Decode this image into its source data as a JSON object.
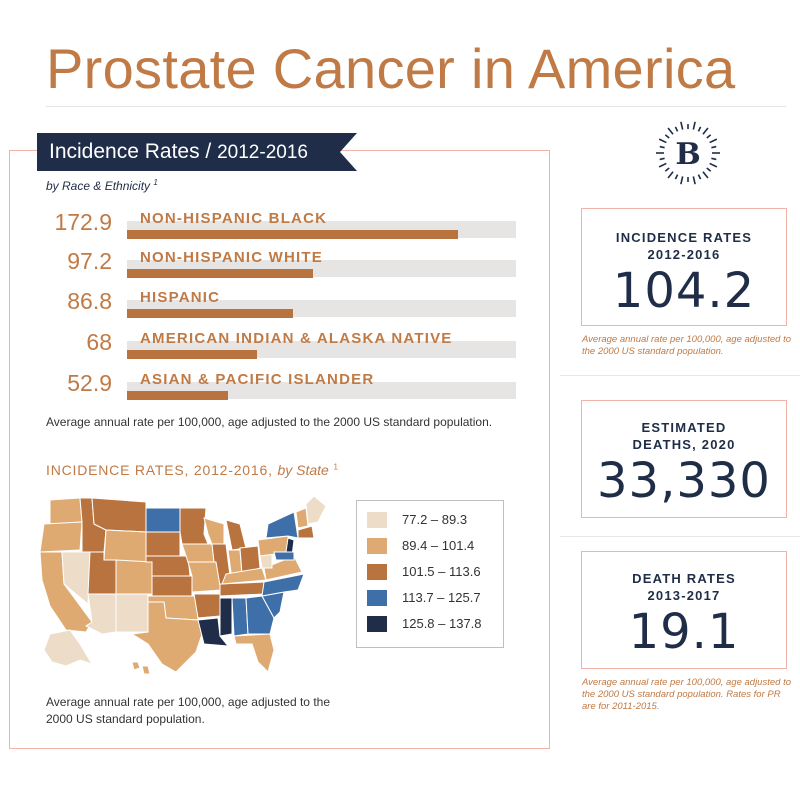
{
  "title": "Prostate Cancer in America",
  "colors": {
    "accent": "#c07a45",
    "navy": "#1f2d48",
    "bar_fill": "#b8733f",
    "bar_bg": "#e7e4e4",
    "border": "#f0b3a7"
  },
  "race_section": {
    "banner_main": "Incidence Rates",
    "banner_sep": " / ",
    "banner_years": "2012-2016",
    "subhead": "by Race & Ethnicity",
    "footnote_mark": "1",
    "note": "Average annual rate per 100,000, age adjusted to the 2000 US standard population."
  },
  "state_section": {
    "heading": "INCIDENCE RATES, 2012-2016,",
    "heading_italic": "by State",
    "footnote_mark": "1",
    "note_line1": "Average annual rate per 100,000, age adjusted to the",
    "note_line2": "2000 US standard population.",
    "map_icon": "us-states-choropleth"
  },
  "chart_data": [
    {
      "type": "bar",
      "orientation": "horizontal",
      "title": "Incidence Rates / 2012-2016",
      "subtitle": "by Race & Ethnicity",
      "categories": [
        "NON-HISPANIC BLACK",
        "NON-HISPANIC WHITE",
        "HISPANIC",
        "AMERICAN INDIAN & ALASKA NATIVE",
        "ASIAN & PACIFIC ISLANDER"
      ],
      "values": [
        172.9,
        97.2,
        86.8,
        68,
        52.9
      ],
      "value_labels": [
        "172.9",
        "97.2",
        "86.8",
        "68",
        "52.9"
      ],
      "xlim": [
        0,
        200
      ],
      "grid": false
    },
    {
      "type": "heatmap",
      "kind": "choropleth-legend",
      "title": "INCIDENCE RATES, 2012-2016, by State",
      "bins": [
        {
          "label": "77.2 – 89.3",
          "color": "#ecdcc8"
        },
        {
          "label": "89.4 – 101.4",
          "color": "#deaa72"
        },
        {
          "label": "101.5 – 113.6",
          "color": "#b8733f"
        },
        {
          "label": "113.7 – 125.7",
          "color": "#3f6fa8"
        },
        {
          "label": "125.8 – 137.8",
          "color": "#1f2d48"
        }
      ]
    }
  ],
  "logo": {
    "letter": "B",
    "icon": "brand-sunburst-logo"
  },
  "stats": [
    {
      "label_line1": "INCIDENCE RATES",
      "label_line2": "2012-2016",
      "value": "104.2",
      "note": "Average annual rate per 100,000, age adjusted to the 2000 US standard population."
    },
    {
      "label_line1": "ESTIMATED",
      "label_line2": "DEATHS, 2020",
      "value": "33,330",
      "note": ""
    },
    {
      "label_line1": "DEATH RATES",
      "label_line2": "2013-2017",
      "value": "19.1",
      "note": "Average annual rate per 100,000, age adjusted to the 2000 US standard population. Rates for PR are for 2011-2015."
    }
  ]
}
